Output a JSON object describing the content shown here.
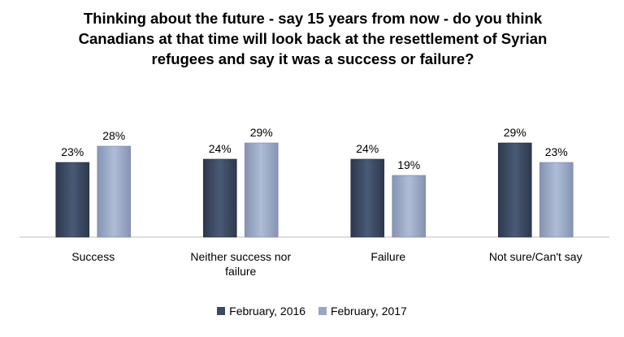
{
  "chart_data": {
    "type": "bar",
    "title_lines": [
      "Thinking about the future - say 15 years from now - do you think",
      "Canadians at that time will look back at the resettlement of Syrian",
      "refugees and say it was a success or failure?"
    ],
    "categories": [
      [
        "Success"
      ],
      [
        "Neither success nor",
        "failure"
      ],
      [
        "Failure"
      ],
      [
        "Not sure/Can't say"
      ]
    ],
    "series": [
      {
        "name": "February, 2016",
        "values": [
          23,
          24,
          24,
          29
        ],
        "labels": [
          "23%",
          "24%",
          "24%",
          "29%"
        ],
        "color": "#3b4a63"
      },
      {
        "name": "February, 2017",
        "values": [
          28,
          29,
          19,
          23
        ],
        "labels": [
          "28%",
          "29%",
          "19%",
          "23%"
        ],
        "color": "#98a7c4"
      }
    ],
    "ylim": [
      0,
      40
    ],
    "grid": false,
    "legend_position": "bottom"
  }
}
